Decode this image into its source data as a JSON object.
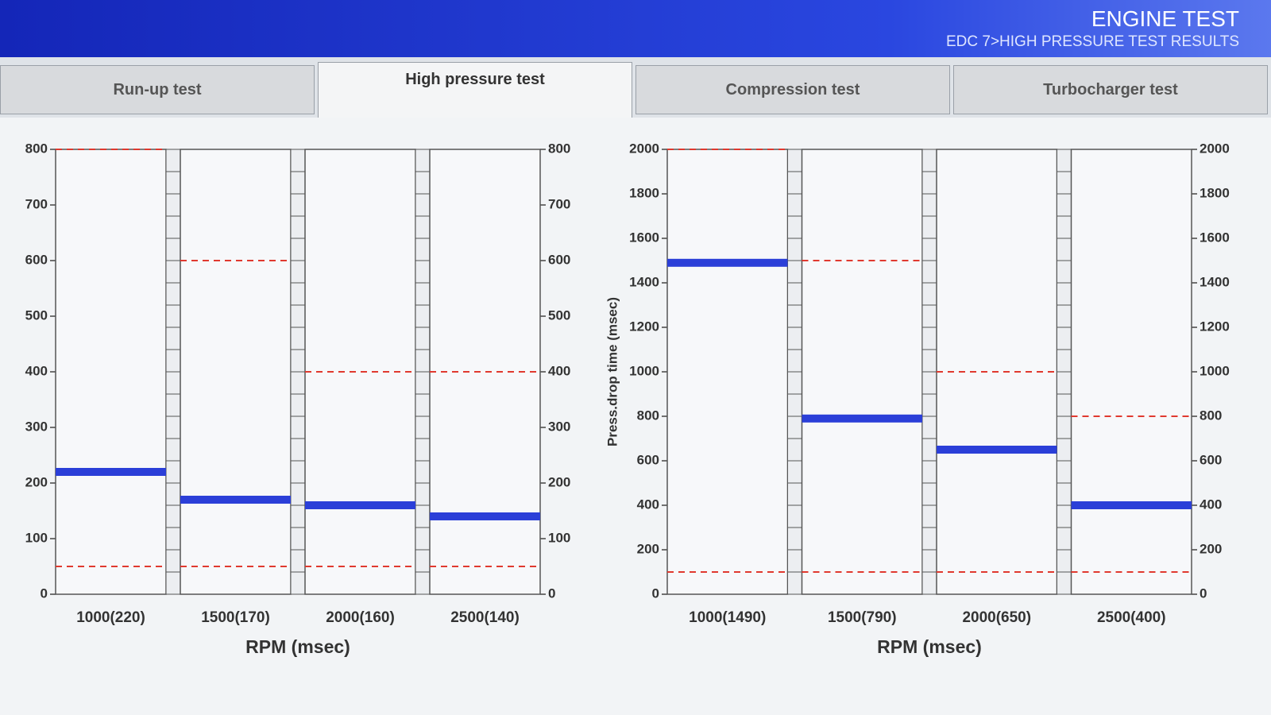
{
  "header": {
    "title": "ENGINE TEST",
    "subtitle": "EDC 7>HIGH PRESSURE TEST RESULTS"
  },
  "tabs": [
    "Run-up test",
    "High pressure test",
    "Compression test",
    "Turbocharger test"
  ],
  "active_tab": 1,
  "chart_data": [
    {
      "type": "level",
      "x_label": "RPM (msec)",
      "categories": [
        "1000(220)",
        "1500(170)",
        "2000(160)",
        "2500(140)"
      ],
      "values": [
        220,
        170,
        160,
        140
      ],
      "color": "#2b3fd8",
      "upper_limits": [
        800,
        600,
        400,
        400
      ],
      "lower_limits": [
        50,
        50,
        50,
        50
      ],
      "limit_color": "#e0392f",
      "ylim": [
        0,
        800
      ],
      "yticks": [
        0,
        100,
        200,
        300,
        400,
        500,
        600,
        700,
        800
      ]
    },
    {
      "type": "level",
      "x_label": "RPM (msec)",
      "y_label": "Press.drop time (msec)",
      "categories": [
        "1000(1490)",
        "1500(790)",
        "2000(650)",
        "2500(400)"
      ],
      "values": [
        1490,
        790,
        650,
        400
      ],
      "color": "#2b3fd8",
      "upper_limits": [
        2000,
        1500,
        1000,
        800
      ],
      "lower_limits": [
        100,
        100,
        100,
        100
      ],
      "limit_color": "#e0392f",
      "ylim": [
        0,
        2000
      ],
      "yticks": [
        0,
        200,
        400,
        600,
        800,
        1000,
        1200,
        1400,
        1600,
        1800,
        2000
      ]
    }
  ]
}
